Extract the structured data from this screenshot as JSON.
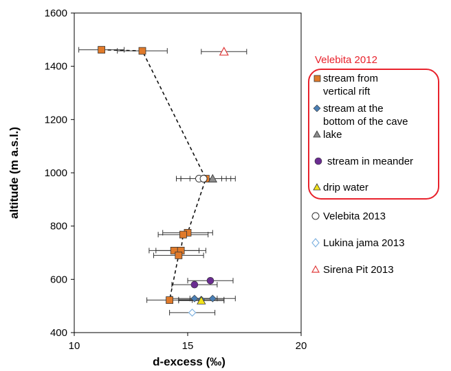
{
  "chart_data": {
    "type": "scatter",
    "xlabel": "d-excess (‰)",
    "ylabel": "altitude (m a.s.l.)",
    "xlim": [
      10,
      20
    ],
    "ylim": [
      400,
      1600
    ],
    "xticks": [
      10,
      15,
      20
    ],
    "yticks": [
      400,
      600,
      800,
      1000,
      1200,
      1400,
      1600
    ],
    "grid": false,
    "legend_placement": "right",
    "legend_group_title": "Velebita 2012",
    "colors": {
      "orange": "#e07a2a",
      "blue": "#4a7fb5",
      "gray": "#8c8c8c",
      "purple": "#6a2c91",
      "yellow": "#f2e21a",
      "light_blue": "#7fb2e0",
      "red": "#e03a3a",
      "highlight": "#e8212b"
    },
    "series": [
      {
        "name": "stream from vertical rift",
        "marker": "square",
        "color": "#e07a2a",
        "connected": true,
        "points": [
          {
            "x": 11.2,
            "y": 1462,
            "xerr": 1.0
          },
          {
            "x": 13.0,
            "y": 1458,
            "xerr": 1.1
          },
          {
            "x": 15.8,
            "y": 978,
            "xerr": 1.1
          },
          {
            "x": 15.0,
            "y": 775,
            "xerr": 1.1
          },
          {
            "x": 14.8,
            "y": 768,
            "xerr": 1.1
          },
          {
            "x": 14.7,
            "y": 708,
            "xerr": 1.1
          },
          {
            "x": 14.4,
            "y": 708,
            "xerr": 1.1
          },
          {
            "x": 14.6,
            "y": 690,
            "xerr": 1.1
          },
          {
            "x": 14.2,
            "y": 522,
            "xerr": 1.0
          }
        ]
      },
      {
        "name": "stream at the bottom of the cave",
        "marker": "diamond",
        "color": "#4a7fb5",
        "connected": false,
        "points": [
          {
            "x": 15.3,
            "y": 528,
            "xerr": 1.0
          },
          {
            "x": 16.1,
            "y": 528,
            "xerr": 1.0
          },
          {
            "x": 15.6,
            "y": 524,
            "xerr": 1.0
          }
        ]
      },
      {
        "name": "lake",
        "marker": "triangle",
        "color": "#8c8c8c",
        "connected": false,
        "points": [
          {
            "x": 16.1,
            "y": 978,
            "xerr": 1.0
          }
        ]
      },
      {
        "name": "stream in meander",
        "marker": "circle",
        "color": "#6a2c91",
        "connected": false,
        "points": [
          {
            "x": 16.0,
            "y": 595,
            "xerr": 1.0
          },
          {
            "x": 15.3,
            "y": 580,
            "xerr": 1.0
          }
        ]
      },
      {
        "name": "drip water",
        "marker": "triangle",
        "color": "#f2e21a",
        "connected": false,
        "points": [
          {
            "x": 15.6,
            "y": 520,
            "xerr": 1.0
          }
        ]
      },
      {
        "name": "Velebita 2013",
        "marker": "circle-open",
        "color": "#333333",
        "connected": false,
        "points": [
          {
            "x": 15.5,
            "y": 978,
            "xerr": 1.0
          },
          {
            "x": 15.7,
            "y": 978,
            "xerr": 1.0
          }
        ]
      },
      {
        "name": "Lukina jama 2013",
        "marker": "diamond-open",
        "color": "#7fb2e0",
        "connected": false,
        "points": [
          {
            "x": 15.2,
            "y": 475,
            "xerr": 1.0
          }
        ]
      },
      {
        "name": "Sirena Pit 2013",
        "marker": "triangle-open",
        "color": "#e03a3a",
        "connected": false,
        "points": [
          {
            "x": 16.6,
            "y": 1455,
            "xerr": 1.0
          }
        ]
      }
    ],
    "legend_text": {
      "rift": [
        "stream from",
        "vertical rift"
      ],
      "bottom": [
        "stream at the",
        "bottom of the cave"
      ],
      "lake": "lake",
      "meander": "stream in meander",
      "drip": "drip water",
      "velebita2013": "Velebita 2013",
      "lukina": "Lukina jama 2013",
      "sirena": "Sirena Pit 2013"
    }
  }
}
